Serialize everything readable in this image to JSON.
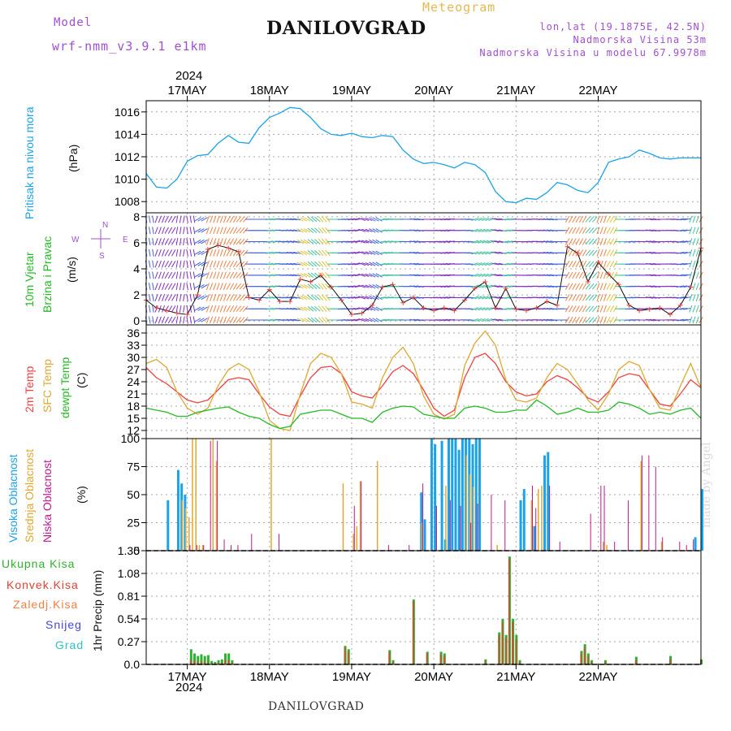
{
  "header": {
    "model_label": "Model",
    "model_name": "wrf-nmm_v3.9.1 e1km",
    "title": "DANILOVGRAD",
    "meteogram": "Meteogram",
    "lonlat": "lon,lat (19.1875E, 42.5N)",
    "altitude": "Nadmorska Visina 53m",
    "model_altitude": "Nadmorska Visina u modelu 67.9978m"
  },
  "footer": {
    "station": "DANILOVGRAD",
    "credit": "made by Angel"
  },
  "colors": {
    "pressure": "#1aa3e8",
    "t2m": "#f04040",
    "sfc": "#e0a830",
    "dewpt": "#22bb22",
    "high": "#1aa3e8",
    "mid": "#e0a830",
    "low": "#c01890",
    "precip": "#30b030",
    "conv": "#e04030"
  },
  "chart_data": [
    {
      "panel": "pressure",
      "type": "line",
      "ylabel": [
        "Pritisak na nivou mora",
        "(hPa)"
      ],
      "ylim": [
        1007,
        1017
      ],
      "yticks": [
        1008,
        1010,
        1012,
        1014,
        1016
      ],
      "x_unit": "hours from 2024-05-16 12:00",
      "x": [
        0,
        3,
        6,
        9,
        12,
        15,
        18,
        21,
        24,
        27,
        30,
        33,
        36,
        39,
        42,
        45,
        48,
        51,
        54,
        57,
        60,
        63,
        66,
        69,
        72,
        75,
        78,
        81,
        84,
        87,
        90,
        93,
        96,
        99,
        102,
        105,
        108,
        111,
        114,
        117,
        120,
        123,
        126,
        129,
        132,
        135,
        138,
        141,
        144,
        147,
        150,
        153,
        156,
        159,
        162
      ],
      "values": [
        1010.5,
        1009.3,
        1009.2,
        1010.0,
        1011.6,
        1012.1,
        1012.2,
        1013.2,
        1013.9,
        1013.3,
        1013.2,
        1014.6,
        1015.5,
        1015.9,
        1016.4,
        1016.3,
        1015.5,
        1014.5,
        1014.0,
        1013.9,
        1014.1,
        1013.8,
        1013.7,
        1013.9,
        1013.8,
        1012.6,
        1011.8,
        1011.4,
        1011.5,
        1011.3,
        1011.0,
        1011.5,
        1011.3,
        1010.6,
        1008.9,
        1008.0,
        1007.9,
        1008.3,
        1008.2,
        1008.8,
        1009.7,
        1009.5,
        1009.0,
        1008.8,
        1009.7,
        1011.5,
        1011.8,
        1012.0,
        1012.6,
        1012.3,
        1011.9,
        1011.8,
        1011.9,
        1011.9,
        1011.9
      ]
    },
    {
      "panel": "wind",
      "type": "line",
      "ylabel": [
        "10m Vjetar",
        "Brzina i Pravac",
        "(m/s)"
      ],
      "compass": [
        "N",
        "S",
        "W",
        "E"
      ],
      "ylim": [
        -0.3,
        8.3
      ],
      "yticks": [
        0,
        2,
        4,
        6,
        8
      ],
      "x_unit": "hours from 2024-05-16 12:00",
      "x": [
        0,
        3,
        6,
        9,
        12,
        15,
        18,
        21,
        24,
        27,
        30,
        33,
        36,
        39,
        42,
        45,
        48,
        51,
        54,
        57,
        60,
        63,
        66,
        69,
        72,
        75,
        78,
        81,
        84,
        87,
        90,
        93,
        96,
        99,
        102,
        105,
        108,
        111,
        114,
        117,
        120,
        123,
        126,
        129,
        132,
        135,
        138,
        141,
        144,
        147,
        150,
        153,
        156,
        159,
        162
      ],
      "speed": [
        1.6,
        1.0,
        0.8,
        0.6,
        0.5,
        2.0,
        5.5,
        5.8,
        5.6,
        5.3,
        1.8,
        1.6,
        2.4,
        1.5,
        1.5,
        3.2,
        3.0,
        3.5,
        2.6,
        1.6,
        0.5,
        0.6,
        1.2,
        2.6,
        2.8,
        1.4,
        1.8,
        1.0,
        0.8,
        1.0,
        0.8,
        1.6,
        2.5,
        3.0,
        1.0,
        2.5,
        0.9,
        0.8,
        1.0,
        1.5,
        1.2,
        5.7,
        5.2,
        3.0,
        4.5,
        3.6,
        2.8,
        1.2,
        0.8,
        0.9,
        1.0,
        0.5,
        1.2,
        2.6,
        5.6
      ],
      "direction_deg": [
        350,
        20,
        30,
        10,
        350,
        240,
        200,
        200,
        210,
        220,
        90,
        90,
        80,
        95,
        100,
        300,
        310,
        320,
        90,
        85,
        80,
        110,
        120,
        80,
        85,
        90,
        100,
        90,
        85,
        80,
        90,
        95,
        250,
        250,
        100,
        260,
        90,
        85,
        95,
        100,
        90,
        210,
        210,
        220,
        200,
        210,
        90,
        85,
        90,
        100,
        90,
        95,
        80,
        200,
        210
      ]
    },
    {
      "panel": "temperature",
      "type": "line",
      "ylabel": [
        "2m Temp",
        "SFC Temp",
        "dewpt Temp",
        "(C)"
      ],
      "ylim": [
        10,
        38
      ],
      "yticks": [
        12,
        15,
        18,
        21,
        24,
        27,
        30,
        33,
        36
      ],
      "x_unit": "hours from 2024-05-16 12:00",
      "x": [
        0,
        3,
        6,
        9,
        12,
        15,
        18,
        21,
        24,
        27,
        30,
        33,
        36,
        39,
        42,
        45,
        48,
        51,
        54,
        57,
        60,
        63,
        66,
        69,
        72,
        75,
        78,
        81,
        84,
        87,
        90,
        93,
        96,
        99,
        102,
        105,
        108,
        111,
        114,
        117,
        120,
        123,
        126,
        129,
        132,
        135,
        138,
        141,
        144,
        147,
        150,
        153,
        156,
        159,
        162
      ],
      "series": [
        {
          "name": "2m Temp",
          "values": [
            27.5,
            25.0,
            23.5,
            21.5,
            19.5,
            18.8,
            19.5,
            22.0,
            24.5,
            25.0,
            24.5,
            21.0,
            17.8,
            16.0,
            15.5,
            20.5,
            25.0,
            27.5,
            27.8,
            26.0,
            21.5,
            20.5,
            20.0,
            23.0,
            26.5,
            28.0,
            26.0,
            22.0,
            17.5,
            15.5,
            17.0,
            25.0,
            30.0,
            31.0,
            28.5,
            24.0,
            21.5,
            20.5,
            21.0,
            24.0,
            25.5,
            24.5,
            22.5,
            20.0,
            19.0,
            21.5,
            25.0,
            26.0,
            25.5,
            22.0,
            18.5,
            18.0,
            21.0,
            24.5,
            22.5
          ]
        },
        {
          "name": "SFC Temp",
          "values": [
            28.5,
            29.5,
            27.5,
            21.5,
            17.5,
            16.0,
            17.5,
            23.0,
            27.0,
            28.5,
            27.0,
            21.5,
            14.5,
            12.5,
            12.0,
            21.0,
            28.5,
            31.0,
            30.0,
            26.0,
            19.0,
            18.5,
            17.5,
            25.0,
            30.0,
            32.5,
            28.5,
            20.5,
            16.0,
            14.8,
            16.0,
            28.0,
            33.5,
            36.5,
            33.0,
            24.5,
            19.5,
            19.0,
            20.0,
            25.0,
            28.5,
            27.0,
            23.5,
            19.5,
            17.0,
            21.0,
            27.0,
            29.0,
            28.0,
            22.0,
            17.5,
            17.0,
            23.0,
            28.5,
            22.5
          ]
        },
        {
          "name": "dewpt Temp",
          "values": [
            17.5,
            17.0,
            16.5,
            15.5,
            15.5,
            16.5,
            17.0,
            17.5,
            17.8,
            16.5,
            15.5,
            15.0,
            13.5,
            12.5,
            13.0,
            16.0,
            16.5,
            17.0,
            17.0,
            16.0,
            15.0,
            15.0,
            14.0,
            16.5,
            17.5,
            18.0,
            17.8,
            16.0,
            15.5,
            15.0,
            15.0,
            17.5,
            18.0,
            17.5,
            16.5,
            16.5,
            17.0,
            17.0,
            19.5,
            18.0,
            16.0,
            16.5,
            17.5,
            16.5,
            16.5,
            17.0,
            19.0,
            18.5,
            17.5,
            16.0,
            16.5,
            16.0,
            17.0,
            17.5,
            15.0
          ]
        }
      ]
    },
    {
      "panel": "clouds",
      "type": "bar",
      "ylabel": [
        "Visoka Oblacnost",
        "Srednja Oblacnost",
        "Niska Oblacnost",
        "(%)"
      ],
      "ylim": [
        0,
        100
      ],
      "yticks": [
        0,
        25,
        50,
        75,
        100
      ],
      "x_unit": "hours from 2024-05-16 12:00",
      "series": [
        {
          "name": "Visoka Oblacnost",
          "x": [
            6,
            9,
            10,
            11,
            80,
            81,
            83,
            84,
            86,
            87,
            88,
            89,
            90,
            91,
            92,
            93,
            94,
            95,
            96,
            97,
            109,
            110,
            113,
            116,
            117,
            160,
            162
          ],
          "values": [
            45,
            72,
            60,
            50,
            52,
            28,
            100,
            95,
            98,
            10,
            100,
            100,
            100,
            90,
            100,
            100,
            100,
            95,
            100,
            100,
            45,
            55,
            22,
            85,
            88,
            12,
            55
          ]
        },
        {
          "name": "Srednja Oblacnost",
          "x": [
            10,
            11,
            12,
            13,
            14,
            15,
            16,
            19,
            20,
            36,
            57,
            60,
            61,
            62,
            67,
            80,
            87,
            93,
            94,
            95,
            102,
            112,
            114,
            115,
            133,
            134,
            144,
            150
          ],
          "values": [
            45,
            38,
            30,
            100,
            100,
            5,
            5,
            100,
            80,
            100,
            60,
            15,
            22,
            62,
            80,
            25,
            58,
            85,
            68,
            57,
            5,
            45,
            55,
            58,
            8,
            5,
            80,
            8
          ]
        },
        {
          "name": "Niska Oblacnost",
          "x": [
            12,
            14,
            16,
            18,
            20,
            22,
            24,
            26,
            30,
            38,
            60,
            62,
            70,
            76,
            80,
            84,
            88,
            91,
            94,
            96,
            100,
            104,
            112,
            113,
            117,
            120,
            129,
            132,
            133,
            136,
            140,
            144,
            146,
            148,
            150,
            155,
            157,
            159
          ],
          "values": [
            5,
            5,
            5,
            98,
            98,
            10,
            5,
            5,
            15,
            15,
            40,
            62,
            5,
            5,
            60,
            40,
            45,
            40,
            25,
            42,
            50,
            45,
            58,
            38,
            58,
            8,
            33,
            58,
            58,
            8,
            45,
            85,
            85,
            75,
            12,
            8,
            5,
            10
          ]
        }
      ]
    },
    {
      "panel": "precipitation",
      "type": "bar",
      "ylabel": [
        "1hr Precip (mm)"
      ],
      "legend": [
        "Ukupna Kisa",
        "Konvek.Kisa",
        "Zaledj.Kisa",
        "Snijeg",
        "Grad"
      ],
      "ylim": [
        0,
        1.35
      ],
      "yticks": [
        0,
        0.27,
        0.54,
        0.81,
        1.08,
        1.35
      ],
      "x_unit": "hours from 2024-05-16 12:00",
      "x": [
        13,
        14,
        15,
        16,
        17,
        18,
        19,
        20,
        21,
        22,
        23,
        24,
        25,
        58,
        59,
        71,
        72,
        78,
        82,
        86,
        87,
        99,
        103,
        104,
        105,
        106,
        107,
        108,
        109,
        127,
        128,
        129,
        130,
        134,
        143,
        153,
        162
      ],
      "values": [
        0.18,
        0.13,
        0.1,
        0.12,
        0.1,
        0.11,
        0.04,
        0.03,
        0.05,
        0.06,
        0.13,
        0.13,
        0.05,
        0.22,
        0.18,
        0.17,
        0.05,
        0.77,
        0.15,
        0.15,
        0.13,
        0.06,
        0.38,
        0.54,
        0.35,
        1.28,
        0.54,
        0.35,
        0.05,
        0.16,
        0.24,
        0.13,
        0.05,
        0.05,
        0.09,
        0.1,
        0.06
      ],
      "convective": [
        0.05,
        0.04,
        0.03,
        0.04,
        0.03,
        0.03,
        0.01,
        0.01,
        0.02,
        0.02,
        0.05,
        0.05,
        0.02,
        0.2,
        0.15,
        0.15,
        0.03,
        0.75,
        0.13,
        0.12,
        0.1,
        0.04,
        0.35,
        0.5,
        0.32,
        1.25,
        0.5,
        0.3,
        0.03,
        0.13,
        0.2,
        0.1,
        0.03,
        0.03,
        0.05,
        0.06,
        0.05
      ]
    }
  ],
  "x_axis": {
    "year": "2024",
    "tick_labels": [
      "17MAY",
      "18MAY",
      "19MAY",
      "20MAY",
      "21MAY",
      "22MAY"
    ],
    "tick_hours": [
      12,
      36,
      60,
      84,
      108,
      132
    ]
  }
}
